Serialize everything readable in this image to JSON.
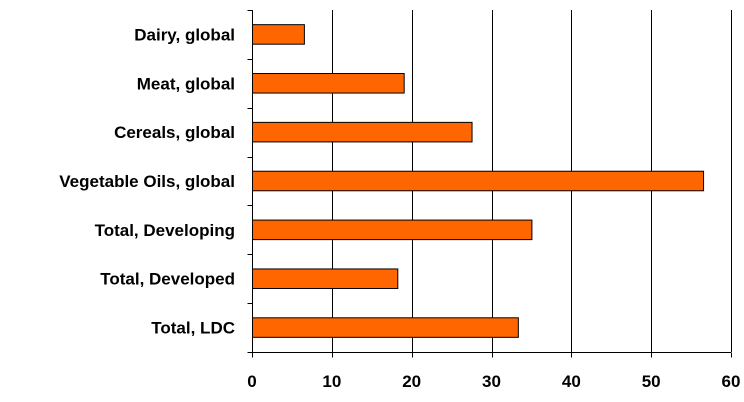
{
  "chart_data": {
    "type": "bar",
    "orientation": "horizontal",
    "categories": [
      "Dairy, global",
      "Meat, global",
      "Cereals, global",
      "Vegetable Oils, global",
      "Total, Developing",
      "Total, Developed",
      "Total, LDC"
    ],
    "values": [
      6.5,
      19,
      27.5,
      56.5,
      35,
      18.2,
      33.3
    ],
    "xlim": [
      0,
      60
    ],
    "xticks": [
      0,
      10,
      20,
      30,
      40,
      50,
      60
    ],
    "title": "",
    "xlabel": "",
    "ylabel": "",
    "grid": "vertical",
    "legend": "none",
    "colors": {
      "bar_fill": "#ff6600",
      "bar_stroke": "#000000",
      "grid": "#000000",
      "axis": "#000000",
      "text": "#000000"
    }
  }
}
